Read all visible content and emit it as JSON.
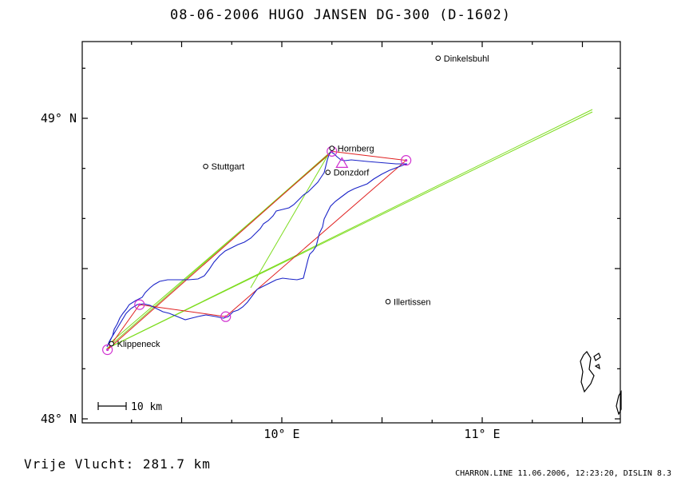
{
  "title": "08-06-2006    HUGO JANSEN    DG-300 (D-1602)",
  "footer": {
    "distance": "Vrije Vlucht:  281.7 km",
    "credit": "CHARRON.LINE 11.06.2006, 12:23:20, DISLIN 8.3"
  },
  "axes": {
    "lat_labels": [
      {
        "lat": 49.0,
        "label": "49° N"
      },
      {
        "lat": 48.0,
        "label": "48° N"
      }
    ],
    "lon_labels": [
      {
        "lon": 10.0,
        "label": "10° E"
      },
      {
        "lon": 11.0,
        "label": "11° E"
      }
    ],
    "lon_range": [
      9.0,
      11.7
    ],
    "lat_range": [
      47.99,
      49.26
    ]
  },
  "scale_bar": {
    "label": "10 km"
  },
  "towns": [
    {
      "name": "Dinkelsbuhl",
      "lon": 10.78,
      "lat": 49.2
    },
    {
      "name": "Hornberg",
      "lon": 10.25,
      "lat": 48.9
    },
    {
      "name": "Donzdorf",
      "lon": 10.23,
      "lat": 48.82
    },
    {
      "name": "Stuttgart",
      "lon": 9.62,
      "lat": 48.84
    },
    {
      "name": "Illertissen",
      "lon": 10.53,
      "lat": 48.39
    },
    {
      "name": "Klippeneck",
      "lon": 9.15,
      "lat": 48.25
    }
  ],
  "turnpoints": [
    {
      "lon": 9.13,
      "lat": 48.23
    },
    {
      "lon": 9.29,
      "lat": 48.38
    },
    {
      "lon": 9.72,
      "lat": 48.34
    },
    {
      "lon": 10.25,
      "lat": 48.89
    },
    {
      "lon": 10.62,
      "lat": 48.86
    }
  ],
  "start_marker": {
    "lon": 10.3,
    "lat": 48.85
  },
  "colors": {
    "track": "#1a23c8",
    "task": "#e02020",
    "green": "#7ddc1e",
    "turnpoint": "#d030d0",
    "frame": "#000000"
  }
}
